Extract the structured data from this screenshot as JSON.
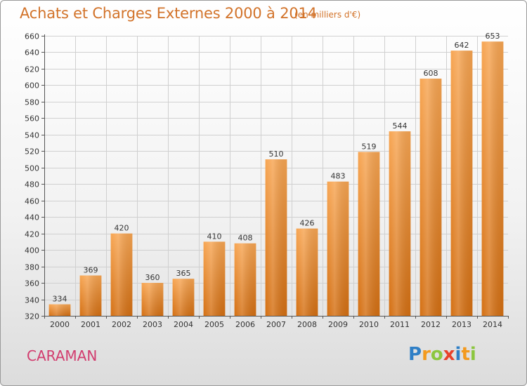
{
  "title": "Achats et Charges Externes 2000 à 2014",
  "unit_note": "(en milliers d'€)",
  "place_name": "CARAMAN",
  "logo": {
    "letters": [
      {
        "ch": "P",
        "color": "#2f7fc6"
      },
      {
        "ch": "r",
        "color": "#f39a1e"
      },
      {
        "ch": "o",
        "color": "#8cc63f"
      },
      {
        "ch": "x",
        "color": "#e8412a"
      },
      {
        "ch": "i",
        "color": "#2f7fc6"
      },
      {
        "ch": "t",
        "color": "#f39a1e"
      },
      {
        "ch": "i",
        "color": "#8cc63f"
      }
    ]
  },
  "colors": {
    "bar_top": "#f7a552",
    "bar_bottom": "#d46f12",
    "title": "#d2732a",
    "place": "#d23c6e",
    "grid": "#d0d0d0"
  },
  "chart_data": {
    "type": "bar",
    "title": "Achats et Charges Externes 2000 à 2014",
    "subtitle": "(en milliers d'€)",
    "xlabel": "",
    "ylabel": "",
    "categories": [
      "2000",
      "2001",
      "2002",
      "2003",
      "2004",
      "2005",
      "2006",
      "2007",
      "2008",
      "2009",
      "2010",
      "2011",
      "2012",
      "2013",
      "2014"
    ],
    "values": [
      334,
      369,
      420,
      360,
      365,
      410,
      408,
      510,
      426,
      483,
      519,
      544,
      608,
      642,
      653
    ],
    "ylim": [
      320,
      660
    ],
    "yticks": [
      320,
      340,
      360,
      380,
      400,
      420,
      440,
      460,
      480,
      500,
      520,
      540,
      560,
      580,
      600,
      620,
      640,
      660
    ],
    "grid": true,
    "legend": "none"
  }
}
